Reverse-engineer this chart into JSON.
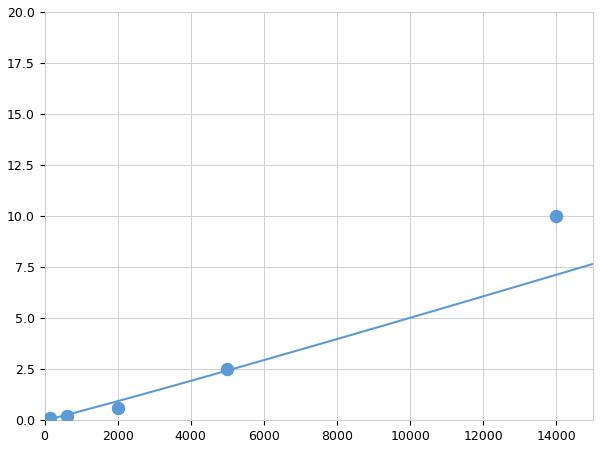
{
  "x": [
    156,
    625,
    2000,
    5000,
    14000
  ],
  "y": [
    0.1,
    0.2,
    0.6,
    2.5,
    10.0
  ],
  "line_color": "#5b9bd5",
  "marker_color": "#5b9bd5",
  "marker_size": 5,
  "xlim": [
    0,
    15000
  ],
  "ylim": [
    0,
    20
  ],
  "xticks": [
    0,
    2000,
    4000,
    6000,
    8000,
    10000,
    12000,
    14000
  ],
  "yticks": [
    0.0,
    2.5,
    5.0,
    7.5,
    10.0,
    12.5,
    15.0,
    17.5,
    20.0
  ],
  "grid_color": "#d0d0d0",
  "background_color": "#ffffff",
  "figure_bg": "#ffffff",
  "linewidth": 1.5,
  "title": "",
  "xlabel": "",
  "ylabel": ""
}
